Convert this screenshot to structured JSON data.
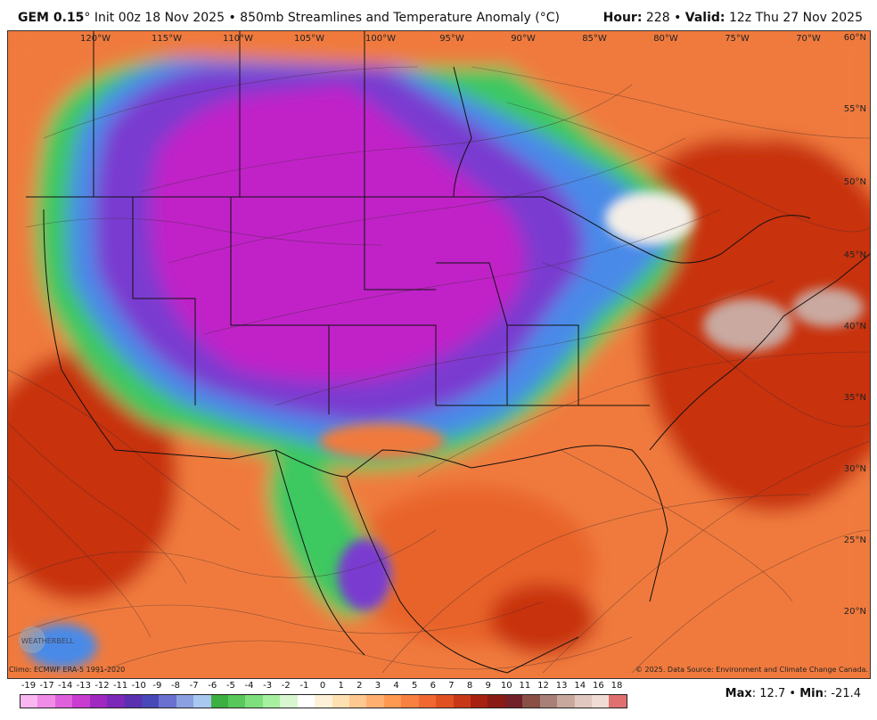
{
  "header": {
    "model": "GEM 0.15",
    "deg": "°",
    "init": "Init 00z 18 Nov 2025",
    "bullet": "•",
    "product": "850mb Streamlines and Temperature Anomaly (°C)",
    "hour_label": "Hour:",
    "hour_value": "228",
    "valid_label": "Valid:",
    "valid_value": "12z Thu 27 Nov 2025"
  },
  "map": {
    "lon_labels": [
      "120°W",
      "115°W",
      "110°W",
      "105°W",
      "100°W",
      "95°W",
      "90°W",
      "85°W",
      "80°W",
      "75°W",
      "70°W"
    ],
    "lat_labels": [
      "60°N",
      "55°N",
      "50°N",
      "45°N",
      "40°N",
      "35°N",
      "30°N",
      "25°N",
      "20°N"
    ],
    "colors": {
      "warm": "#f07a3c",
      "warm_dark": "#c8320a",
      "very_warm": "#8a1a10",
      "hot_pale": "#c9a9a0",
      "cold_magenta": "#c020c8",
      "cold_purple": "#7a3ad0",
      "cool_blue": "#4a8ae8",
      "cool_green": "#3cc860",
      "neutral": "#f4eee8",
      "ocean_warm": "#e8642a"
    }
  },
  "footer": {
    "climo": "Climo: ECMWF ERA-5 1991-2020",
    "copyright": "© 2025. Data Source: Environment and Climate Change Canada.",
    "logo_text": "WEATHERBELL",
    "max_label": "Max",
    "max_value": "12.7",
    "min_label": "Min",
    "min_value": "-21.4",
    "bullet": "•"
  },
  "colorbar": {
    "labels": [
      "-19",
      "-17",
      "-14",
      "-13",
      "-12",
      "-11",
      "-10",
      "-9",
      "-8",
      "-7",
      "-6",
      "-5",
      "-4",
      "-3",
      "-2",
      "-1",
      "0",
      "1",
      "2",
      "3",
      "4",
      "5",
      "6",
      "7",
      "8",
      "9",
      "10",
      "11",
      "12",
      "13",
      "14",
      "16",
      "18"
    ],
    "colors": [
      "#f9b6f0",
      "#f08ce6",
      "#e060dc",
      "#c83cd0",
      "#a028c0",
      "#7c28b8",
      "#5a30b0",
      "#4848b8",
      "#6a70d0",
      "#8aa0e0",
      "#a8c8f0",
      "#3cb040",
      "#58c85a",
      "#7ee07c",
      "#a6f0a0",
      "#d8f6d0",
      "#ffffff",
      "#fff0d8",
      "#ffe0b0",
      "#ffc890",
      "#ffb070",
      "#ff9850",
      "#f88040",
      "#f06830",
      "#e05020",
      "#c83818",
      "#a82010",
      "#8a1a14",
      "#72202a",
      "#8a5046",
      "#a88078",
      "#c8a89c",
      "#e0c8c0",
      "#f0dcd4",
      "#e07070"
    ]
  }
}
